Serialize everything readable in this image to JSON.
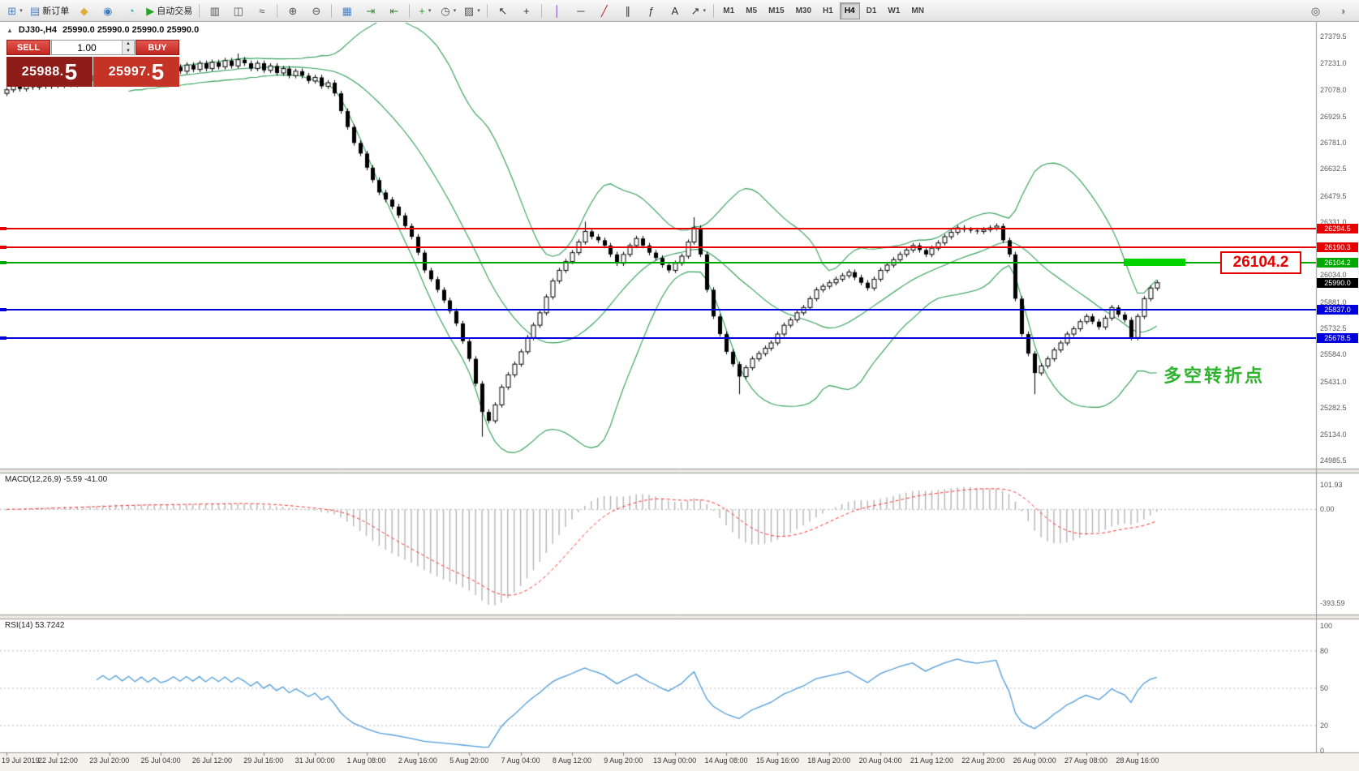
{
  "toolbar": {
    "groups": [
      {
        "name": "file-group",
        "items": [
          {
            "name": "new-chart-button",
            "glyph": "⊞",
            "color": "#4f81bd",
            "dropdown": true
          },
          {
            "name": "new-order-button",
            "glyph": "▤",
            "color": "#4f81bd",
            "label": "新订单"
          },
          {
            "name": "metaeditor-button",
            "glyph": "◆",
            "color": "#dfae3c"
          },
          {
            "name": "market-button",
            "glyph": "◉",
            "color": "#3f7fc1"
          },
          {
            "name": "refresh-button",
            "glyph": "◔",
            "color": "#3fa0c1"
          },
          {
            "name": "autotrading-button",
            "glyph": "▶",
            "color": "#27a327",
            "label": "自动交易"
          }
        ]
      },
      {
        "name": "chart-type-group",
        "items": [
          {
            "name": "bar-chart-button",
            "glyph": "▥",
            "color": "#555555"
          },
          {
            "name": "candlestick-chart-button",
            "glyph": "◫",
            "color": "#555555"
          },
          {
            "name": "line-chart-button",
            "glyph": "≈",
            "color": "#555555"
          }
        ]
      },
      {
        "name": "zoom-group",
        "items": [
          {
            "name": "zoom-in-button",
            "glyph": "⊕",
            "color": "#555555"
          },
          {
            "name": "zoom-out-button",
            "glyph": "⊖",
            "color": "#555555"
          }
        ]
      },
      {
        "name": "window-group",
        "items": [
          {
            "name": "tile-windows-button",
            "glyph": "▦",
            "color": "#4f81bd"
          },
          {
            "name": "auto-scroll-button",
            "glyph": "⇥",
            "color": "#3d8b3d"
          },
          {
            "name": "chart-shift-button",
            "glyph": "⇤",
            "color": "#3d8b3d"
          }
        ]
      },
      {
        "name": "tools-group",
        "items": [
          {
            "name": "indicators-button",
            "glyph": "+",
            "color": "#2f9a2f",
            "dropdown": true
          },
          {
            "name": "periods-button",
            "glyph": "◷",
            "color": "#555555",
            "dropdown": true
          },
          {
            "name": "templates-button",
            "glyph": "▨",
            "color": "#555555",
            "dropdown": true
          }
        ]
      },
      {
        "name": "cursor-group",
        "items": [
          {
            "name": "cursor-button",
            "glyph": "↖",
            "color": "#333333"
          },
          {
            "name": "crosshair-button",
            "glyph": "+",
            "color": "#333333"
          }
        ]
      },
      {
        "name": "objects-group",
        "items": [
          {
            "name": "vertical-line-button",
            "glyph": "│",
            "color": "#7a3bb5"
          },
          {
            "name": "horizontal-line-button",
            "glyph": "─",
            "color": "#333333"
          },
          {
            "name": "trendline-button",
            "glyph": "╱",
            "color": "#bb2222"
          },
          {
            "name": "channel-button",
            "glyph": "∥",
            "color": "#333333"
          },
          {
            "name": "fibonacci-button",
            "glyph": "ƒ",
            "color": "#333333"
          },
          {
            "name": "text-button",
            "glyph": "A",
            "color": "#333333"
          },
          {
            "name": "arrows-button",
            "glyph": "↗",
            "color": "#333333",
            "dropdown": true
          }
        ]
      }
    ],
    "timeframes": [
      {
        "name": "timeframe-m1",
        "label": "M1"
      },
      {
        "name": "timeframe-m5",
        "label": "M5"
      },
      {
        "name": "timeframe-m15",
        "label": "M15"
      },
      {
        "name": "timeframe-m30",
        "label": "M30"
      },
      {
        "name": "timeframe-h1",
        "label": "H1"
      },
      {
        "name": "timeframe-h4",
        "label": "H4",
        "active": true
      },
      {
        "name": "timeframe-d1",
        "label": "D1"
      },
      {
        "name": "timeframe-w1",
        "label": "W1"
      },
      {
        "name": "timeframe-mn",
        "label": "MN"
      }
    ],
    "right_items": [
      {
        "name": "search-icon",
        "glyph": "◎",
        "color": "#555555"
      },
      {
        "name": "status-icon",
        "glyph": "◑",
        "color": "#888888"
      }
    ]
  },
  "chart": {
    "title": {
      "icon": "▲",
      "symbol_period": "DJ30-,H4",
      "ohlc": "25990.0 25990.0 25990.0 25990.0"
    },
    "trade_panel": {
      "sell_label": "SELL",
      "buy_label": "BUY",
      "volume": "1.00",
      "spin_up": "▲",
      "spin_down": "▼",
      "sell_price_int": "25988.",
      "sell_price_big": "5",
      "buy_price_int": "25997.",
      "buy_price_big": "5"
    },
    "annotation": {
      "text": "多空转折点",
      "color": "#2db32d"
    },
    "callout": {
      "text": "26104.2",
      "color": "#e60000"
    },
    "highlight": {
      "price": 26104.2,
      "color": "#00d300"
    },
    "axis": {
      "current_price": "25990.0",
      "current_price_value": 25990.0,
      "ticks": [
        "27379.5",
        "27231.0",
        "27078.0",
        "26929.5",
        "26781.0",
        "26632.5",
        "26479.5",
        "26331.0",
        "26182.5",
        "26034.0",
        "25881.0",
        "25732.5",
        "25584.0",
        "25431.0",
        "25282.5",
        "25134.0",
        "24985.5"
      ]
    },
    "levels": [
      {
        "name": "resistance-line-1",
        "price": 26294.5,
        "label": "26294.5",
        "color": "#e60000"
      },
      {
        "name": "resistance-line-2",
        "price": 26190.3,
        "label": "26190.3",
        "color": "#e60000"
      },
      {
        "name": "pivot-line",
        "price": 26104.2,
        "label": "26104.2",
        "color": "#00a800"
      },
      {
        "name": "support-line-1",
        "price": 25837.0,
        "label": "25837.0",
        "color": "#0000dd"
      },
      {
        "name": "support-line-2",
        "price": 25678.5,
        "label": "25678.5",
        "color": "#0000dd"
      }
    ]
  },
  "chart_data": {
    "type": "candlestick",
    "symbol": "DJ30-",
    "period": "H4",
    "ylim": [
      24940,
      27450
    ],
    "first_open": 27060,
    "closes": [
      27080,
      27110,
      27085,
      27120,
      27095,
      27130,
      27100,
      27135,
      27105,
      27140,
      27110,
      27145,
      27130,
      27160,
      27135,
      27170,
      27145,
      27180,
      27150,
      27185,
      27155,
      27190,
      27160,
      27195,
      27165,
      27180,
      27210,
      27185,
      27220,
      27195,
      27230,
      27200,
      27235,
      27210,
      27245,
      27215,
      27250,
      27230,
      27200,
      27230,
      27190,
      27215,
      27175,
      27200,
      27160,
      27185,
      27160,
      27130,
      27150,
      27100,
      27120,
      27060,
      26960,
      26870,
      26780,
      26720,
      26640,
      26570,
      26500,
      26460,
      26420,
      26370,
      26310,
      26250,
      26160,
      26060,
      26010,
      25950,
      25890,
      25830,
      25760,
      25660,
      25560,
      25420,
      25260,
      25210,
      25300,
      25400,
      25470,
      25530,
      25600,
      25680,
      25750,
      25820,
      25910,
      26000,
      26060,
      26110,
      26160,
      26220,
      26280,
      26250,
      26230,
      26200,
      26150,
      26100,
      26150,
      26200,
      26240,
      26200,
      26160,
      26130,
      26090,
      26060,
      26100,
      26140,
      26220,
      26300,
      26150,
      25950,
      25800,
      25700,
      25600,
      25530,
      25460,
      25510,
      25560,
      25590,
      25620,
      25650,
      25700,
      25750,
      25780,
      25820,
      25850,
      25900,
      25950,
      25970,
      25990,
      26010,
      26030,
      26050,
      26020,
      25990,
      25960,
      26010,
      26060,
      26090,
      26120,
      26150,
      26175,
      26200,
      26175,
      26150,
      26185,
      26215,
      26250,
      26275,
      26300,
      26290,
      26285,
      26280,
      26290,
      26300,
      26310,
      26230,
      26150,
      25900,
      25700,
      25590,
      25480,
      25520,
      25560,
      25610,
      25650,
      25700,
      25730,
      25770,
      25800,
      25770,
      25740,
      25790,
      25850,
      25810,
      25780,
      25680,
      25800,
      25900,
      25960,
      25990
    ],
    "wick_overrides": {
      "36": {
        "high": 27285
      },
      "74": {
        "low": 25120
      },
      "90": {
        "high": 26335
      },
      "107": {
        "high": 26360
      },
      "114": {
        "low": 25360
      },
      "160": {
        "low": 25360
      }
    },
    "indicators": {
      "bollinger": {
        "period": 20,
        "deviation": 2,
        "color": "#2f9e55"
      },
      "macd": {
        "fast": 12,
        "slow": 26,
        "signal": 9,
        "ylim": [
          -420,
          110
        ],
        "histogram_color": "#b4b4b4",
        "signal_color": "#ff3333"
      },
      "rsi": {
        "period": 14,
        "value": 53.7242,
        "ylim": [
          0,
          100
        ],
        "levels": [
          80,
          50,
          20
        ],
        "color": "#4f9bd8"
      }
    }
  },
  "macd_panel": {
    "label": "MACD(12,26,9) -5.59 -41.00",
    "ticks": [
      "101.93",
      "0.00",
      "-393.59"
    ]
  },
  "rsi_panel": {
    "label": "RSI(14) 53.7242",
    "ticks": [
      "100",
      "80",
      "50",
      "20",
      "0"
    ]
  },
  "time_axis": {
    "labels": [
      "19 Jul 2019",
      "22 Jul 12:00",
      "23 Jul 20:00",
      "25 Jul 04:00",
      "26 Jul 12:00",
      "29 Jul 16:00",
      "31 Jul 00:00",
      "1 Aug 08:00",
      "2 Aug 16:00",
      "5 Aug 20:00",
      "7 Aug 04:00",
      "8 Aug 12:00",
      "9 Aug 20:00",
      "13 Aug 00:00",
      "14 Aug 08:00",
      "15 Aug 16:00",
      "18 Aug 20:00",
      "20 Aug 04:00",
      "21 Aug 12:00",
      "22 Aug 20:00",
      "26 Aug 00:00",
      "27 Aug 08:00",
      "28 Aug 16:00"
    ]
  }
}
